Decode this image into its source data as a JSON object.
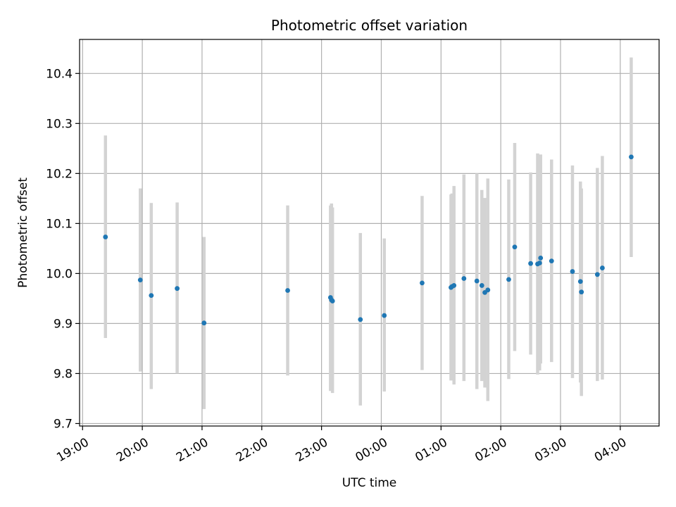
{
  "chart_data": {
    "type": "scatter",
    "title": "Photometric offset variation",
    "xlabel": "UTC time",
    "ylabel": "Photometric offset",
    "ylim": [
      9.695,
      10.468
    ],
    "xlim_hours": [
      18.95,
      28.65
    ],
    "grid": true,
    "colors": {
      "points": "#1f77b4",
      "error_bars": "#d3d3d3",
      "grid": "#b0b0b0"
    },
    "x_ticks": [
      {
        "hour": 19,
        "label": "19:00"
      },
      {
        "hour": 20,
        "label": "20:00"
      },
      {
        "hour": 21,
        "label": "21:00"
      },
      {
        "hour": 22,
        "label": "22:00"
      },
      {
        "hour": 23,
        "label": "23:00"
      },
      {
        "hour": 24,
        "label": "00:00"
      },
      {
        "hour": 25,
        "label": "01:00"
      },
      {
        "hour": 26,
        "label": "02:00"
      },
      {
        "hour": 27,
        "label": "03:00"
      },
      {
        "hour": 28,
        "label": "04:00"
      }
    ],
    "y_ticks": [
      {
        "value": 9.7,
        "label": "9.7"
      },
      {
        "value": 9.8,
        "label": "9.8"
      },
      {
        "value": 9.9,
        "label": "9.9"
      },
      {
        "value": 10.0,
        "label": "10.0"
      },
      {
        "value": 10.1,
        "label": "10.1"
      },
      {
        "value": 10.2,
        "label": "10.2"
      },
      {
        "value": 10.3,
        "label": "10.3"
      },
      {
        "value": 10.4,
        "label": "10.4"
      }
    ],
    "points": [
      {
        "time": "19:23",
        "y": 10.073,
        "ylo": 9.871,
        "yhi": 10.276
      },
      {
        "time": "19:58",
        "y": 9.987,
        "ylo": 9.804,
        "yhi": 10.17
      },
      {
        "time": "20:09",
        "y": 9.956,
        "ylo": 9.769,
        "yhi": 10.141
      },
      {
        "time": "20:35",
        "y": 9.97,
        "ylo": 9.8,
        "yhi": 10.142
      },
      {
        "time": "21:02",
        "y": 9.901,
        "ylo": 9.729,
        "yhi": 10.073
      },
      {
        "time": "22:26",
        "y": 9.966,
        "ylo": 9.796,
        "yhi": 10.136
      },
      {
        "time": "23:09",
        "y": 9.952,
        "ylo": 9.765,
        "yhi": 10.136
      },
      {
        "time": "23:10",
        "y": 9.947,
        "ylo": 9.77,
        "yhi": 10.14
      },
      {
        "time": "23:11",
        "y": 9.945,
        "ylo": 9.761,
        "yhi": 10.132
      },
      {
        "time": "23:39",
        "y": 9.908,
        "ylo": 9.736,
        "yhi": 10.081
      },
      {
        "time": "00:03",
        "y": 9.916,
        "ylo": 9.764,
        "yhi": 10.07
      },
      {
        "time": "00:41",
        "y": 9.981,
        "ylo": 9.807,
        "yhi": 10.155
      },
      {
        "time": "01:10",
        "y": 9.972,
        "ylo": 9.786,
        "yhi": 10.158
      },
      {
        "time": "01:11",
        "y": 9.974,
        "ylo": 9.789,
        "yhi": 10.16
      },
      {
        "time": "01:13",
        "y": 9.976,
        "ylo": 9.778,
        "yhi": 10.175
      },
      {
        "time": "01:23",
        "y": 9.99,
        "ylo": 9.785,
        "yhi": 10.198
      },
      {
        "time": "01:36",
        "y": 9.985,
        "ylo": 9.769,
        "yhi": 10.2
      },
      {
        "time": "01:41",
        "y": 9.976,
        "ylo": 9.785,
        "yhi": 10.167
      },
      {
        "time": "01:44",
        "y": 9.962,
        "ylo": 9.772,
        "yhi": 10.151
      },
      {
        "time": "01:47",
        "y": 9.967,
        "ylo": 9.745,
        "yhi": 10.19
      },
      {
        "time": "02:08",
        "y": 9.988,
        "ylo": 9.789,
        "yhi": 10.188
      },
      {
        "time": "02:14",
        "y": 10.053,
        "ylo": 9.845,
        "yhi": 10.261
      },
      {
        "time": "02:30",
        "y": 10.02,
        "ylo": 9.838,
        "yhi": 10.202
      },
      {
        "time": "02:37",
        "y": 10.019,
        "ylo": 9.798,
        "yhi": 10.24
      },
      {
        "time": "02:39",
        "y": 10.021,
        "ylo": 9.806,
        "yhi": 10.236
      },
      {
        "time": "02:40",
        "y": 10.031,
        "ylo": 9.82,
        "yhi": 10.238
      },
      {
        "time": "02:51",
        "y": 10.025,
        "ylo": 9.823,
        "yhi": 10.228
      },
      {
        "time": "03:12",
        "y": 10.004,
        "ylo": 9.791,
        "yhi": 10.216
      },
      {
        "time": "03:20",
        "y": 9.984,
        "ylo": 9.782,
        "yhi": 10.184
      },
      {
        "time": "03:21",
        "y": 9.963,
        "ylo": 9.755,
        "yhi": 10.17
      },
      {
        "time": "03:37",
        "y": 9.998,
        "ylo": 9.785,
        "yhi": 10.211
      },
      {
        "time": "03:42",
        "y": 10.011,
        "ylo": 9.788,
        "yhi": 10.235
      },
      {
        "time": "04:11",
        "y": 10.233,
        "ylo": 10.033,
        "yhi": 10.432
      }
    ]
  }
}
